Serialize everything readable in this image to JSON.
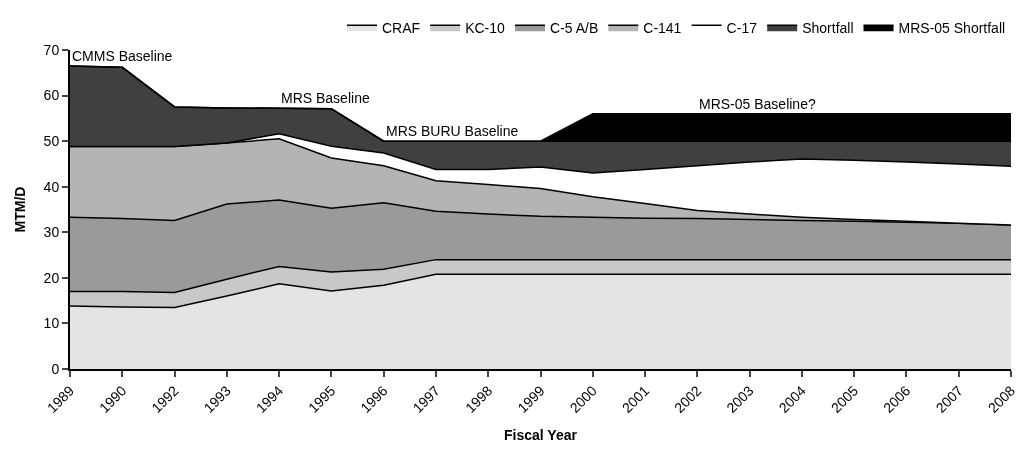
{
  "chart_data": {
    "type": "area",
    "stacked": true,
    "xlabel": "Fiscal Year",
    "ylabel": "MTM/D",
    "categories": [
      "1989",
      "1990",
      "1992",
      "1993",
      "1994",
      "1995",
      "1996",
      "1997",
      "1998",
      "1999",
      "2000",
      "2001",
      "2002",
      "2003",
      "2004",
      "2005",
      "2006",
      "2007",
      "2008"
    ],
    "series": [
      {
        "name": "CRAF",
        "color": "#e4e4e4",
        "values": [
          13.8,
          13.6,
          13.5,
          16,
          18.7,
          17.1,
          18.4,
          20.8,
          20.8,
          20.8,
          20.8,
          20.8,
          20.8,
          20.8,
          20.8,
          20.8,
          20.8,
          20.8,
          20.8
        ]
      },
      {
        "name": "KC-10",
        "color": "#c8c8c8",
        "values": [
          3.2,
          3.4,
          3.3,
          3.7,
          3.8,
          4.2,
          3.5,
          3.2,
          3.2,
          3.2,
          3.2,
          3.2,
          3.2,
          3.2,
          3.2,
          3.2,
          3.2,
          3.2,
          3.2
        ]
      },
      {
        "name": "C-5 A/B",
        "color": "#9a9a9a",
        "values": [
          16.3,
          16.0,
          15.8,
          16.5,
          14.6,
          14.0,
          14.6,
          10.6,
          10.0,
          9.5,
          9.3,
          9.1,
          9.0,
          8.8,
          8.6,
          8.4,
          8.2,
          8.0,
          7.6
        ]
      },
      {
        "name": "C-141",
        "color": "#b4b4b4",
        "values": [
          15.5,
          15.8,
          16.2,
          13.4,
          13.4,
          11.0,
          8.1,
          6.7,
          6.5,
          6.1,
          4.5,
          3.2,
          1.8,
          1.2,
          0.7,
          0.4,
          0.2,
          0,
          0
        ]
      },
      {
        "name": "C-17",
        "color": "#ffffff",
        "values": [
          0,
          0,
          0,
          0,
          1.1,
          2.6,
          2.8,
          2.5,
          3.3,
          4.7,
          5.2,
          7.5,
          9.8,
          11.4,
          12.8,
          13.0,
          13.0,
          13.0,
          12.9
        ]
      },
      {
        "name": "Shortfall",
        "color": "#404040",
        "values": [
          17.7,
          17.4,
          8.7,
          7.7,
          5.6,
          8.2,
          2.6,
          6.2,
          6.2,
          5.7,
          7.0,
          6.2,
          5.4,
          4.6,
          3.9,
          4.2,
          4.6,
          5.0,
          5.5
        ]
      },
      {
        "name": "MRS-05 Shortfall",
        "color": "#000000",
        "values": [
          0,
          0,
          0,
          0,
          0,
          0,
          0,
          0,
          0,
          0,
          6,
          6,
          6,
          6,
          6,
          6,
          6,
          6,
          6
        ]
      }
    ],
    "ylim": [
      0,
      70
    ],
    "yticks": [
      0,
      10,
      20,
      30,
      40,
      50,
      60,
      70
    ],
    "legend": "top",
    "annotations": [
      {
        "text": "CMMS Baseline",
        "x": "1989",
        "y": 66.5
      },
      {
        "text": "MRS Baseline",
        "x": "1994",
        "y": 57.2
      },
      {
        "text": "MRS BURU Baseline",
        "x": "1996",
        "y": 50
      },
      {
        "text": "MRS-05 Baseline?",
        "x": "2002",
        "y": 56
      }
    ]
  }
}
